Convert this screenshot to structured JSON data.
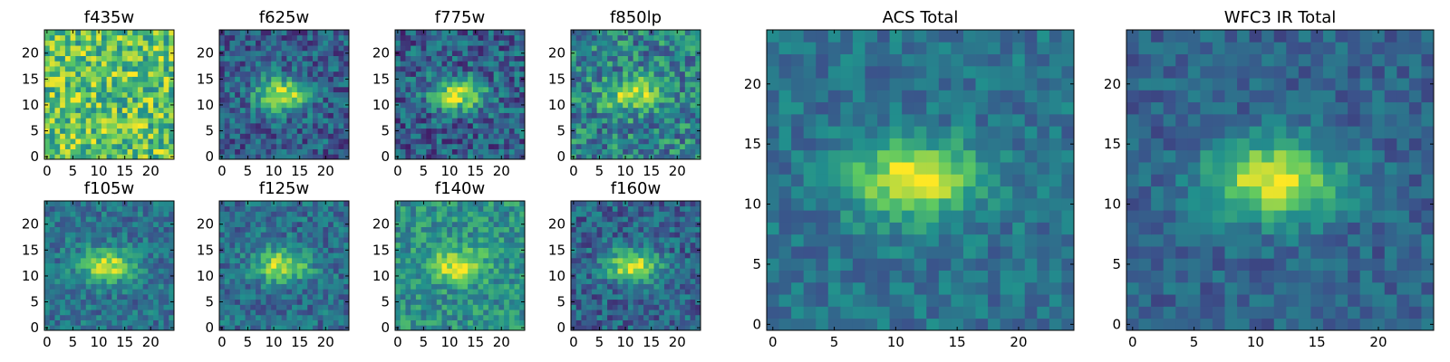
{
  "colormap": [
    "#440154",
    "#3b528b",
    "#21908d",
    "#5dc962",
    "#fde725"
  ],
  "chart_data": [
    {
      "type": "heatmap",
      "title": "f435w",
      "cmap": "viridis",
      "size": 25,
      "blob": 0.0,
      "bg": 0.72,
      "noise": 0.28,
      "xticks": [
        0,
        5,
        10,
        15,
        20
      ],
      "yticks": [
        0,
        5,
        10,
        15,
        20
      ],
      "xlim": [
        0,
        24
      ],
      "ylim": [
        0,
        24
      ]
    },
    {
      "type": "heatmap",
      "title": "f625w",
      "cmap": "viridis",
      "size": 25,
      "blob": 0.62,
      "bg": 0.3,
      "noise": 0.2,
      "xticks": [
        0,
        5,
        10,
        15,
        20
      ],
      "yticks": [
        0,
        5,
        10,
        15,
        20
      ],
      "xlim": [
        0,
        24
      ],
      "ylim": [
        0,
        24
      ]
    },
    {
      "type": "heatmap",
      "title": "f775w",
      "cmap": "viridis",
      "size": 25,
      "blob": 0.62,
      "bg": 0.3,
      "noise": 0.22,
      "xticks": [
        0,
        5,
        10,
        15,
        20
      ],
      "yticks": [
        0,
        5,
        10,
        15,
        20
      ],
      "xlim": [
        0,
        24
      ],
      "ylim": [
        0,
        24
      ]
    },
    {
      "type": "heatmap",
      "title": "f850lp",
      "cmap": "viridis",
      "size": 25,
      "blob": 0.45,
      "bg": 0.45,
      "noise": 0.25,
      "xticks": [
        0,
        5,
        10,
        15,
        20
      ],
      "yticks": [
        0,
        5,
        10,
        15,
        20
      ],
      "xlim": [
        0,
        24
      ],
      "ylim": [
        0,
        24
      ]
    },
    {
      "type": "heatmap",
      "title": "f105w",
      "cmap": "viridis",
      "size": 25,
      "blob": 0.55,
      "bg": 0.38,
      "noise": 0.16,
      "xticks": [
        0,
        5,
        10,
        15,
        20
      ],
      "yticks": [
        0,
        5,
        10,
        15,
        20
      ],
      "xlim": [
        0,
        24
      ],
      "ylim": [
        0,
        24
      ]
    },
    {
      "type": "heatmap",
      "title": "f125w",
      "cmap": "viridis",
      "size": 25,
      "blob": 0.55,
      "bg": 0.36,
      "noise": 0.17,
      "xticks": [
        0,
        5,
        10,
        15,
        20
      ],
      "yticks": [
        0,
        5,
        10,
        15,
        20
      ],
      "xlim": [
        0,
        24
      ],
      "ylim": [
        0,
        24
      ]
    },
    {
      "type": "heatmap",
      "title": "f140w",
      "cmap": "viridis",
      "size": 25,
      "blob": 0.45,
      "bg": 0.5,
      "noise": 0.18,
      "xticks": [
        0,
        5,
        10,
        15,
        20
      ],
      "yticks": [
        0,
        5,
        10,
        15,
        20
      ],
      "xlim": [
        0,
        24
      ],
      "ylim": [
        0,
        24
      ]
    },
    {
      "type": "heatmap",
      "title": "f160w",
      "cmap": "viridis",
      "size": 25,
      "blob": 0.62,
      "bg": 0.32,
      "noise": 0.18,
      "xticks": [
        0,
        5,
        10,
        15,
        20
      ],
      "yticks": [
        0,
        5,
        10,
        15,
        20
      ],
      "xlim": [
        0,
        24
      ],
      "ylim": [
        0,
        24
      ]
    },
    {
      "type": "heatmap",
      "title": "ACS Total",
      "cmap": "viridis",
      "size": 25,
      "blob": 0.6,
      "bg": 0.38,
      "noise": 0.13,
      "xticks": [
        0,
        5,
        10,
        15,
        20
      ],
      "yticks": [
        0,
        5,
        10,
        15,
        20
      ],
      "xlim": [
        0,
        24
      ],
      "ylim": [
        0,
        24
      ]
    },
    {
      "type": "heatmap",
      "title": "WFC3 IR Total",
      "cmap": "viridis",
      "size": 25,
      "blob": 0.66,
      "bg": 0.32,
      "noise": 0.12,
      "xticks": [
        0,
        5,
        10,
        15,
        20
      ],
      "yticks": [
        0,
        5,
        10,
        15,
        20
      ],
      "xlim": [
        0,
        24
      ],
      "ylim": [
        0,
        24
      ]
    }
  ]
}
